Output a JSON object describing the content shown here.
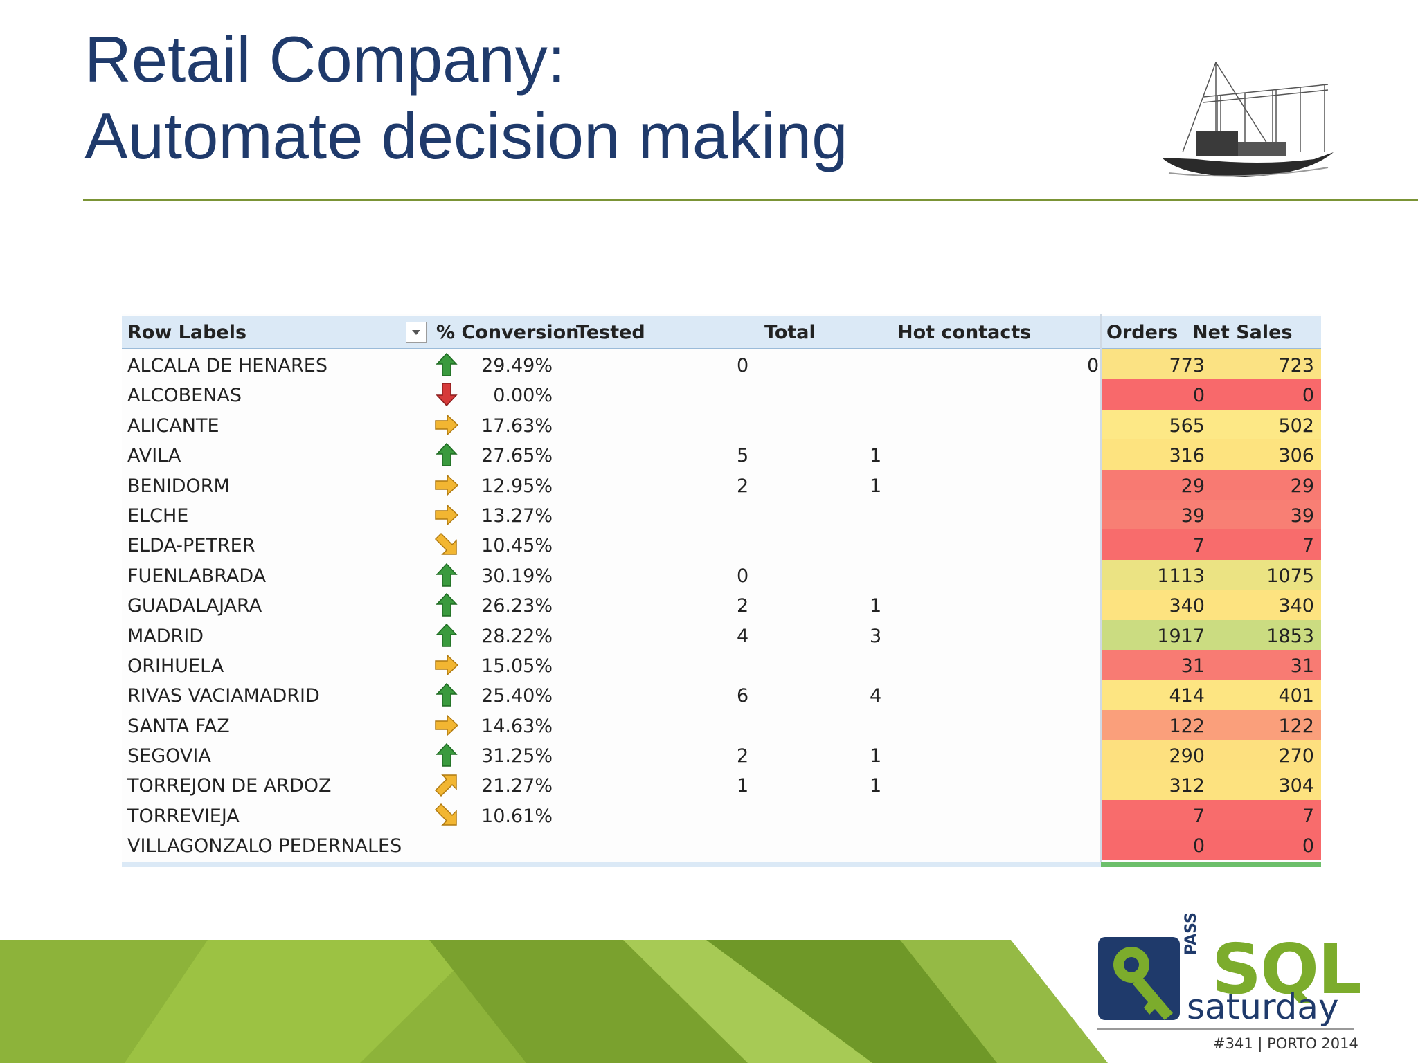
{
  "slide": {
    "title_line1": "Retail Company:",
    "title_line2": "Automate decision making"
  },
  "pivot": {
    "headers": {
      "row_labels": "Row Labels",
      "conversion": "% Conversion",
      "tested": "Tested",
      "total": "Total",
      "hot_contacts": "Hot contacts",
      "orders": "Orders",
      "net_sales": "Net Sales"
    },
    "rows": [
      {
        "label": "ALCALA DE HENARES",
        "icon": "up-arrow-icon",
        "conv": "29.49%",
        "tested": "0",
        "hot": "",
        "extra": "0",
        "orders": "773",
        "sales": "723",
        "orders_color": "#fbe283",
        "sales_color": "#fbe283"
      },
      {
        "label": "ALCOBENAS",
        "icon": "down-arrow-icon",
        "conv": "0.00%",
        "tested": "",
        "hot": "",
        "extra": "",
        "orders": "0",
        "sales": "0",
        "orders_color": "#f8696b",
        "sales_color": "#f8696b"
      },
      {
        "label": "ALICANTE",
        "icon": "right-arrow-icon",
        "conv": "17.63%",
        "tested": "",
        "hot": "",
        "extra": "",
        "orders": "565",
        "sales": "502",
        "orders_color": "#fde886",
        "sales_color": "#fde886"
      },
      {
        "label": "AVILA",
        "icon": "up-arrow-icon",
        "conv": "27.65%",
        "tested": "5",
        "hot": "1",
        "extra": "",
        "orders": "316",
        "sales": "306",
        "orders_color": "#fde37f",
        "sales_color": "#fde37f"
      },
      {
        "label": "BENIDORM",
        "icon": "right-arrow-icon",
        "conv": "12.95%",
        "tested": "2",
        "hot": "1",
        "extra": "",
        "orders": "29",
        "sales": "29",
        "orders_color": "#f87a72",
        "sales_color": "#f87a72"
      },
      {
        "label": "ELCHE",
        "icon": "right-arrow-icon",
        "conv": "13.27%",
        "tested": "",
        "hot": "",
        "extra": "",
        "orders": "39",
        "sales": "39",
        "orders_color": "#f87f74",
        "sales_color": "#f87f74"
      },
      {
        "label": "ELDA-PETRER",
        "icon": "down-right-arrow-icon",
        "conv": "10.45%",
        "tested": "",
        "hot": "",
        "extra": "",
        "orders": "7",
        "sales": "7",
        "orders_color": "#f86c6c",
        "sales_color": "#f86c6c"
      },
      {
        "label": "FUENLABRADA",
        "icon": "up-arrow-icon",
        "conv": "30.19%",
        "tested": "0",
        "hot": "",
        "extra": "",
        "orders": "1113",
        "sales": "1075",
        "orders_color": "#ebe383",
        "sales_color": "#ebe383"
      },
      {
        "label": "GUADALAJARA",
        "icon": "up-arrow-icon",
        "conv": "26.23%",
        "tested": "2",
        "hot": "1",
        "extra": "",
        "orders": "340",
        "sales": "340",
        "orders_color": "#fde380",
        "sales_color": "#fde380"
      },
      {
        "label": "MADRID",
        "icon": "up-arrow-icon",
        "conv": "28.22%",
        "tested": "4",
        "hot": "3",
        "extra": "",
        "orders": "1917",
        "sales": "1853",
        "orders_color": "#cbdc81",
        "sales_color": "#cbdc81"
      },
      {
        "label": "ORIHUELA",
        "icon": "right-arrow-icon",
        "conv": "15.05%",
        "tested": "",
        "hot": "",
        "extra": "",
        "orders": "31",
        "sales": "31",
        "orders_color": "#f87b73",
        "sales_color": "#f87b73"
      },
      {
        "label": "RIVAS VACIAMADRID",
        "icon": "up-arrow-icon",
        "conv": "25.40%",
        "tested": "6",
        "hot": "4",
        "extra": "",
        "orders": "414",
        "sales": "401",
        "orders_color": "#fde582",
        "sales_color": "#fde582"
      },
      {
        "label": "SANTA FAZ",
        "icon": "right-arrow-icon",
        "conv": "14.63%",
        "tested": "",
        "hot": "",
        "extra": "",
        "orders": "122",
        "sales": "122",
        "orders_color": "#fa9f7b",
        "sales_color": "#fa9f7b"
      },
      {
        "label": "SEGOVIA",
        "icon": "up-arrow-icon",
        "conv": "31.25%",
        "tested": "2",
        "hot": "1",
        "extra": "",
        "orders": "290",
        "sales": "270",
        "orders_color": "#fde07f",
        "sales_color": "#fde07f"
      },
      {
        "label": "TORREJON DE ARDOZ",
        "icon": "up-right-arrow-icon",
        "conv": "21.27%",
        "tested": "1",
        "hot": "1",
        "extra": "",
        "orders": "312",
        "sales": "304",
        "orders_color": "#fde27f",
        "sales_color": "#fde27f"
      },
      {
        "label": "TORREVIEJA",
        "icon": "down-right-arrow-icon",
        "conv": "10.61%",
        "tested": "",
        "hot": "",
        "extra": "",
        "orders": "7",
        "sales": "7",
        "orders_color": "#f86c6c",
        "sales_color": "#f86c6c"
      },
      {
        "label": "VILLAGONZALO PEDERNALES",
        "icon": "",
        "conv": "",
        "tested": "",
        "hot": "",
        "extra": "",
        "orders": "0",
        "sales": "0",
        "orders_color": "#f8696b",
        "sales_color": "#f8696b"
      }
    ],
    "icon_colors": {
      "up": "#3a9a3e",
      "down": "#d63a3a",
      "neutral": "#f2b632"
    }
  },
  "logo": {
    "pass": "PASS",
    "sql": "SQL",
    "saturday": "saturday",
    "event": "#341 | PORTO 2014"
  }
}
